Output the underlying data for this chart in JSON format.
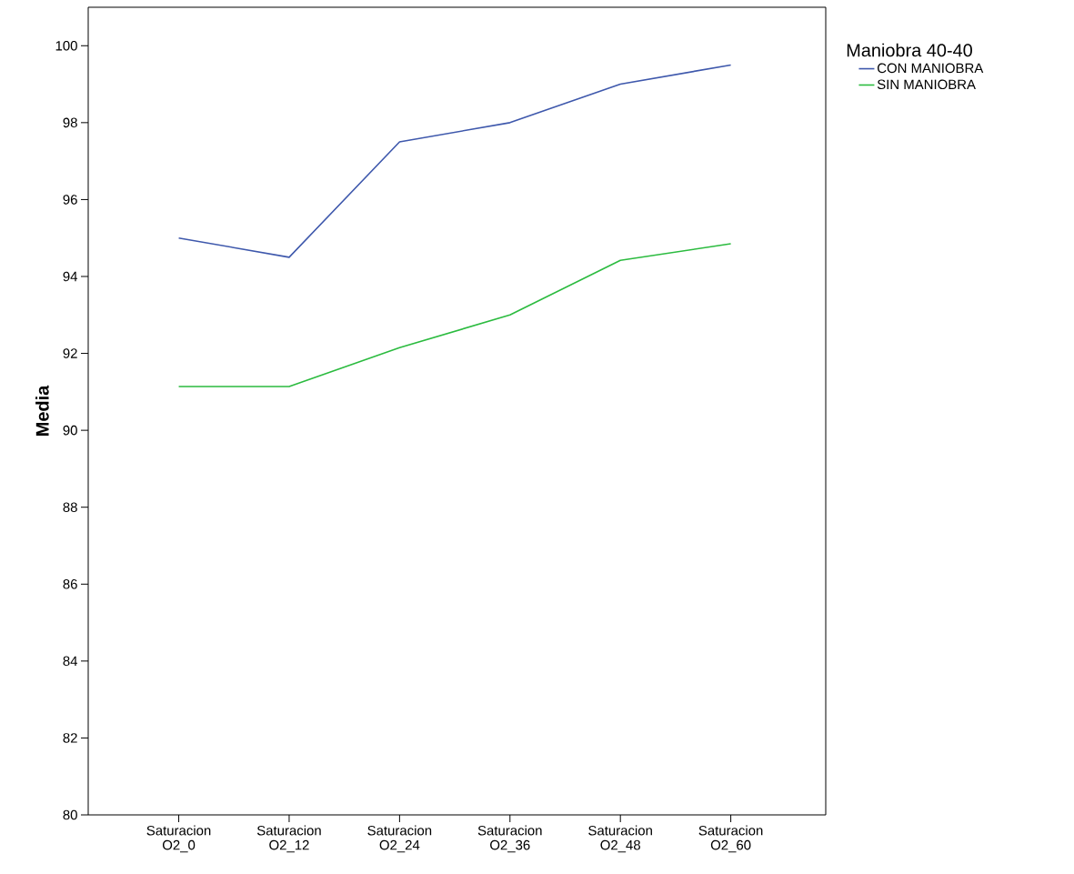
{
  "chart_data": {
    "type": "line",
    "ylabel": "Media",
    "legend_title": "Maniobra 40-40",
    "categories": [
      "Saturacion O2_0",
      "Saturacion O2_12",
      "Saturacion O2_24",
      "Saturacion O2_36",
      "Saturacion O2_48",
      "Saturacion O2_60"
    ],
    "series": [
      {
        "name": "CON MANIOBRA",
        "color": "#3e58ac",
        "values": [
          95.0,
          94.5,
          97.5,
          98.0,
          99.0,
          99.5
        ]
      },
      {
        "name": "SIN MANIOBRA",
        "color": "#2bbb3f",
        "values": [
          91.14,
          91.14,
          92.15,
          93.0,
          94.42,
          94.85
        ]
      }
    ],
    "ylim": [
      80,
      101
    ],
    "yticks": [
      80,
      82,
      84,
      86,
      88,
      90,
      92,
      94,
      96,
      98,
      100
    ],
    "grid": false,
    "legend": "top right",
    "marker": "none",
    "line_style": "solid"
  }
}
